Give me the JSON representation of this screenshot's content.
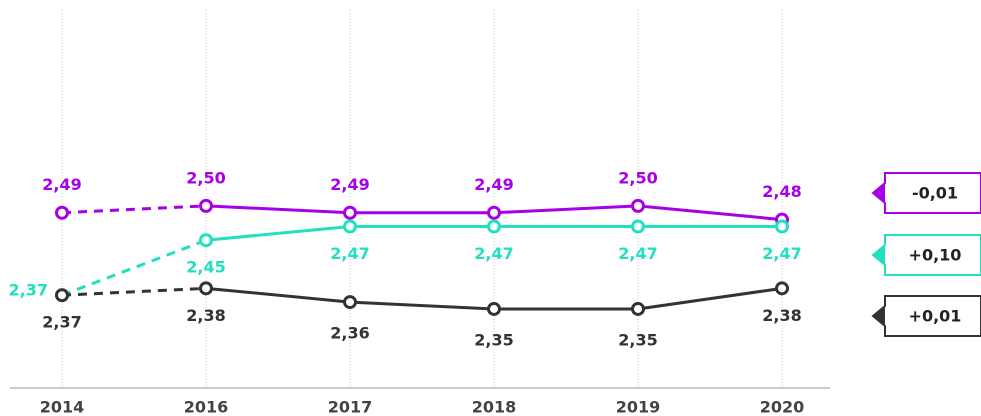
{
  "chart_data": {
    "type": "line",
    "categories": [
      "2014",
      "2016",
      "2017",
      "2018",
      "2019",
      "2020"
    ],
    "ylim": [
      2.235,
      2.785
    ],
    "grid": true,
    "series": [
      {
        "name": "-0,01",
        "color": "#a800e6",
        "values": [
          2.49,
          2.5,
          2.49,
          2.49,
          2.5,
          2.48
        ],
        "value_labels": [
          "2,49",
          "2,50",
          "2,49",
          "2,49",
          "2,50",
          "2,48"
        ]
      },
      {
        "name": "+0,10",
        "color": "#22e0bd",
        "values": [
          2.37,
          2.45,
          2.47,
          2.47,
          2.47,
          2.47
        ],
        "value_labels": [
          "2,37",
          "2,45",
          "2,47",
          "2,47",
          "2,47",
          "2,47"
        ]
      },
      {
        "name": "+0,01",
        "color": "#333333",
        "values": [
          2.37,
          2.38,
          2.36,
          2.35,
          2.35,
          2.38
        ],
        "value_labels": [
          "2,37",
          "2,38",
          "2,36",
          "2,35",
          "2,35",
          "2,38"
        ]
      }
    ]
  }
}
